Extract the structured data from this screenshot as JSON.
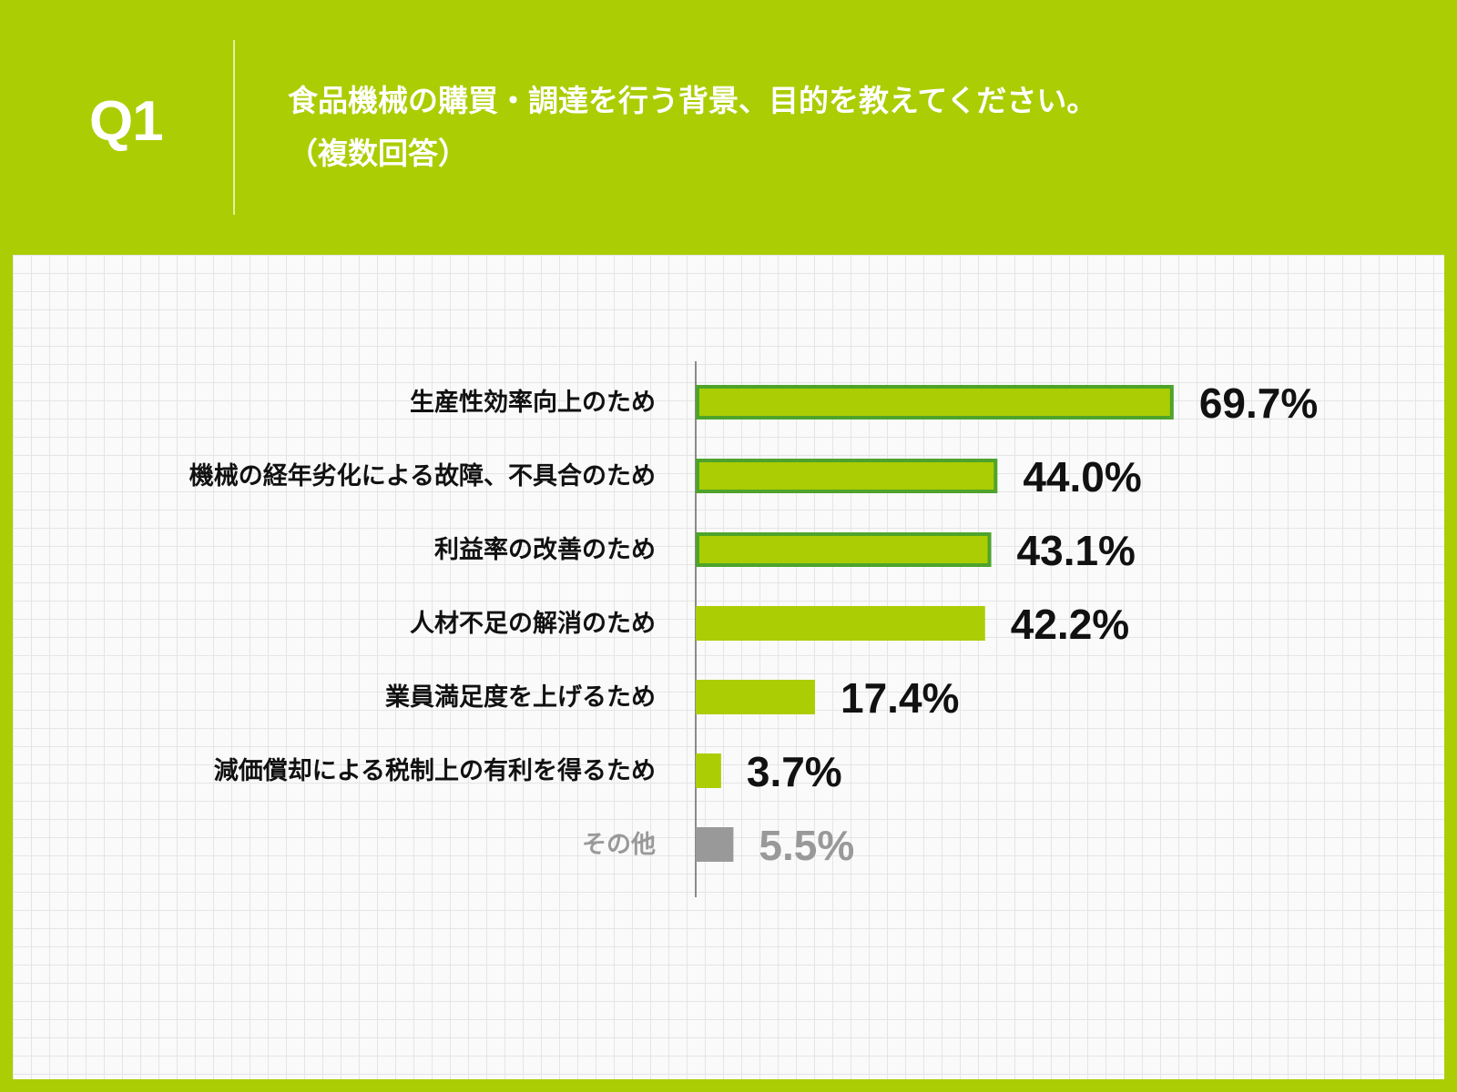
{
  "header": {
    "question_number": "Q1",
    "question_line1": "食品機械の購買・調達を行う背景、目的を教えてください。",
    "question_line2": "（複数回答）"
  },
  "colors": {
    "background": "#abcd03",
    "bar_fill": "#abcd03",
    "bar_outline": "#4ea32b",
    "other_bar": "#999999",
    "other_text": "#999999",
    "text": "#111111"
  },
  "chart_data": {
    "type": "bar",
    "orientation": "horizontal",
    "title": "",
    "xlabel": "",
    "ylabel": "",
    "categories": [
      "生産性効率向上のため",
      "機械の経年劣化による故障、不具合のため",
      "利益率の改善のため",
      "人材不足の解消のため",
      "業員満足度を上げるため",
      "減価償却による税制上の有利を得るため",
      "その他"
    ],
    "values": [
      69.7,
      44.0,
      43.1,
      42.2,
      17.4,
      3.7,
      5.5
    ],
    "value_labels": [
      "69.7%",
      "44.0%",
      "43.1%",
      "42.2%",
      "17.4%",
      "3.7%",
      "5.5%"
    ],
    "outlined": [
      true,
      true,
      true,
      false,
      false,
      false,
      false
    ],
    "is_other": [
      false,
      false,
      false,
      false,
      false,
      false,
      true
    ],
    "xlim": [
      0,
      100
    ],
    "grid": false,
    "legend": "none"
  }
}
